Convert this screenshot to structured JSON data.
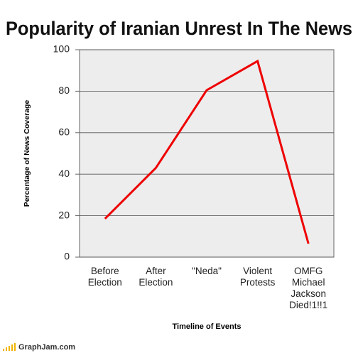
{
  "chart_data": {
    "type": "line",
    "title": "Popularity of Iranian Unrest In The News",
    "x_label": "Timeline of Events",
    "y_label": "Percentage of News Coverage",
    "categories": [
      "Before Election",
      "After Election",
      "\"Neda\"",
      "Violent Protests",
      "OMFG Michael Jackson Died!1!!1"
    ],
    "values": [
      18.5,
      43,
      80.5,
      94.5,
      6.5
    ],
    "color": "#ee0000",
    "ylim": [
      0,
      100
    ],
    "yticks": [
      0,
      20,
      40,
      60,
      80,
      100
    ],
    "grid": true
  },
  "footer": {
    "site": "GraphJam.com"
  }
}
